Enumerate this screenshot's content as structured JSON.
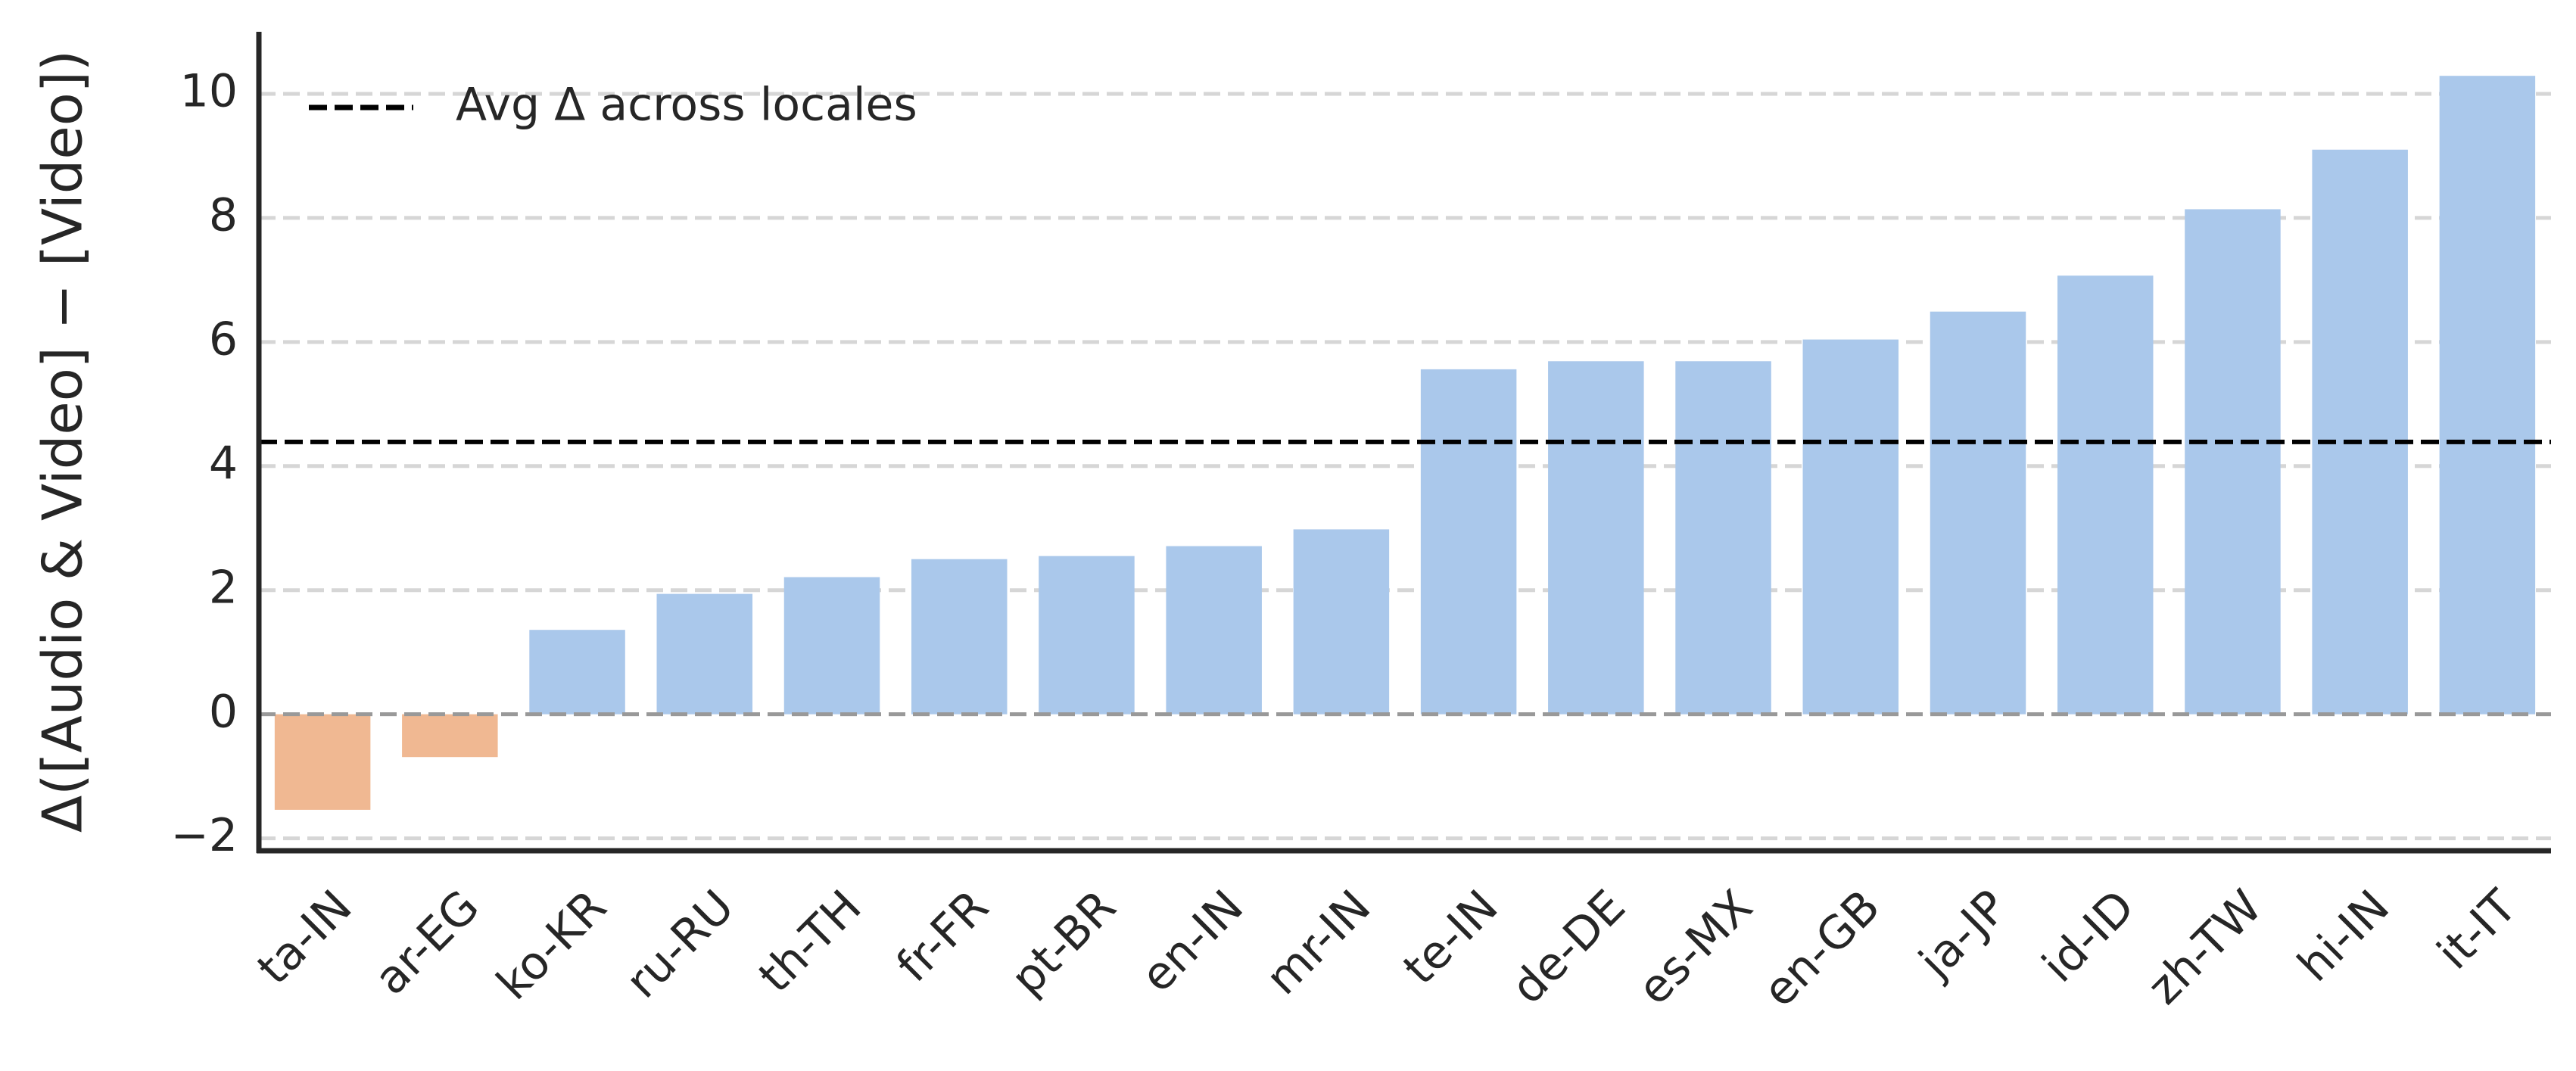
{
  "chart_data": {
    "type": "bar",
    "y_label": "Δ([Audio & Video] − [Video])",
    "categories": [
      "ta-IN",
      "ar-EG",
      "ko-KR",
      "ru-RU",
      "th-TH",
      "fr-FR",
      "pt-BR",
      "en-IN",
      "mr-IN",
      "te-IN",
      "de-DE",
      "es-MX",
      "en-GB",
      "ja-JP",
      "id-ID",
      "zh-TW",
      "hi-IN",
      "it-IT"
    ],
    "values": [
      -1.54,
      -0.69,
      1.36,
      1.94,
      2.21,
      2.5,
      2.55,
      2.71,
      2.98,
      5.56,
      5.69,
      5.69,
      6.04,
      6.49,
      7.07,
      8.14,
      9.1,
      10.29
    ],
    "colors": [
      "#f0b892",
      "#f0b892",
      "#aac8eb",
      "#aac8eb",
      "#aac8eb",
      "#aac8eb",
      "#aac8eb",
      "#aac8eb",
      "#aac8eb",
      "#aac8eb",
      "#aac8eb",
      "#aac8eb",
      "#aac8eb",
      "#aac8eb",
      "#aac8eb",
      "#aac8eb",
      "#aac8eb",
      "#aac8eb"
    ],
    "reference_line": {
      "value": 4.39,
      "label": "Avg Δ across locales",
      "color": "#000000"
    },
    "ylim": [
      -2.2,
      11
    ],
    "yticks": [
      {
        "value": -2,
        "label": "−2"
      },
      0,
      2,
      4,
      6,
      8,
      10
    ],
    "grid": true,
    "legend": "upper left"
  }
}
